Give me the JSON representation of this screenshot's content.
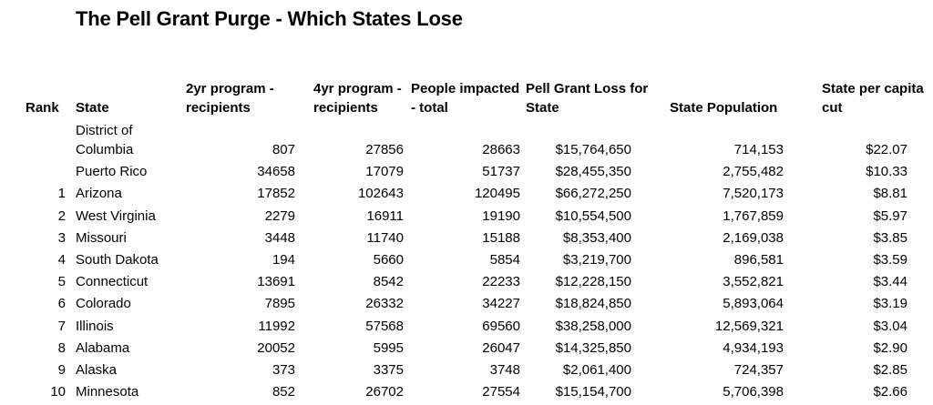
{
  "title": "The Pell Grant Purge - Which States Lose",
  "headers": {
    "rank": "Rank",
    "state": "State",
    "two_yr": "2yr program - recipients",
    "four_yr": "4yr program - recipients",
    "people": "People impacted - total",
    "loss": "Pell Grant Loss for State",
    "population": "State Population",
    "per_capita": "State per capita cut"
  },
  "rows": [
    {
      "rank": "",
      "state": "District of Columbia",
      "two_yr": "807",
      "four_yr": "27856",
      "people": "28663",
      "loss": "$15,764,650",
      "population": "714,153",
      "per_capita": "$22.07"
    },
    {
      "rank": "",
      "state": "Puerto Rico",
      "two_yr": "34658",
      "four_yr": "17079",
      "people": "51737",
      "loss": "$28,455,350",
      "population": "2,755,482",
      "per_capita": "$10.33"
    },
    {
      "rank": "1",
      "state": "Arizona",
      "two_yr": "17852",
      "four_yr": "102643",
      "people": "120495",
      "loss": "$66,272,250",
      "population": "7,520,173",
      "per_capita": "$8.81"
    },
    {
      "rank": "2",
      "state": "West Virginia",
      "two_yr": "2279",
      "four_yr": "16911",
      "people": "19190",
      "loss": "$10,554,500",
      "population": "1,767,859",
      "per_capita": "$5.97"
    },
    {
      "rank": "3",
      "state": "Missouri",
      "two_yr": "3448",
      "four_yr": "11740",
      "people": "15188",
      "loss": "$8,353,400",
      "population": "2,169,038",
      "per_capita": "$3.85"
    },
    {
      "rank": "4",
      "state": "South Dakota",
      "two_yr": "194",
      "four_yr": "5660",
      "people": "5854",
      "loss": "$3,219,700",
      "population": "896,581",
      "per_capita": "$3.59"
    },
    {
      "rank": "5",
      "state": "Connecticut",
      "two_yr": "13691",
      "four_yr": "8542",
      "people": "22233",
      "loss": "$12,228,150",
      "population": "3,552,821",
      "per_capita": "$3.44"
    },
    {
      "rank": "6",
      "state": "Colorado",
      "two_yr": "7895",
      "four_yr": "26332",
      "people": "34227",
      "loss": "$18,824,850",
      "population": "5,893,064",
      "per_capita": "$3.19"
    },
    {
      "rank": "7",
      "state": "Illinois",
      "two_yr": "11992",
      "four_yr": "57568",
      "people": "69560",
      "loss": "$38,258,000",
      "population": "12,569,321",
      "per_capita": "$3.04"
    },
    {
      "rank": "8",
      "state": "Alabama",
      "two_yr": "20052",
      "four_yr": "5995",
      "people": "26047",
      "loss": "$14,325,850",
      "population": "4,934,193",
      "per_capita": "$2.90"
    },
    {
      "rank": "9",
      "state": "Alaska",
      "two_yr": "373",
      "four_yr": "3375",
      "people": "3748",
      "loss": "$2,061,400",
      "population": "724,357",
      "per_capita": "$2.85"
    },
    {
      "rank": "10",
      "state": "Minnesota",
      "two_yr": "852",
      "four_yr": "26702",
      "people": "27554",
      "loss": "$15,154,700",
      "population": "5,706,398",
      "per_capita": "$2.66"
    }
  ]
}
